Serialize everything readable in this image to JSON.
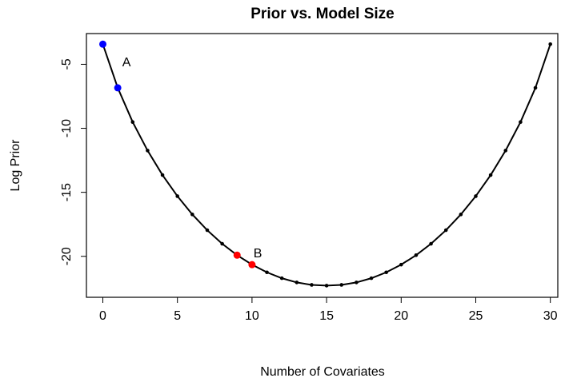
{
  "chart_data": {
    "type": "line",
    "title": "Prior vs. Model Size",
    "x_label": "Number of Covariates",
    "y_label": "Log Prior",
    "x": [
      0,
      1,
      2,
      3,
      4,
      5,
      6,
      7,
      8,
      9,
      10,
      11,
      12,
      13,
      14,
      15,
      16,
      17,
      18,
      19,
      20,
      21,
      22,
      23,
      24,
      25,
      26,
      27,
      28,
      29,
      30
    ],
    "values": [
      -3.43,
      -6.84,
      -9.51,
      -11.74,
      -13.65,
      -15.3,
      -16.73,
      -17.96,
      -19.02,
      -19.91,
      -20.65,
      -21.25,
      -21.71,
      -22.04,
      -22.23,
      -22.29,
      -22.23,
      -22.04,
      -21.71,
      -21.25,
      -20.65,
      -19.91,
      -19.02,
      -17.96,
      -16.73,
      -15.3,
      -13.65,
      -11.74,
      -9.51,
      -6.84,
      -3.43
    ],
    "color": "#000000",
    "point_colors": [
      "#0000ff",
      "#0000ff",
      "#000000",
      "#000000",
      "#000000",
      "#000000",
      "#000000",
      "#000000",
      "#000000",
      "#ff0000",
      "#ff0000",
      "#000000",
      "#000000",
      "#000000",
      "#000000",
      "#000000",
      "#000000",
      "#000000",
      "#000000",
      "#000000",
      "#000000",
      "#000000",
      "#000000",
      "#000000",
      "#000000",
      "#000000",
      "#000000",
      "#000000",
      "#000000",
      "#000000",
      "#000000"
    ],
    "annotations": [
      {
        "text": "A",
        "x": 1.3,
        "y": -4.9
      },
      {
        "text": "B",
        "x": 10.1,
        "y": -19.8
      }
    ],
    "xlim": [
      -1.1,
      30.5
    ],
    "xticks": [
      0,
      5,
      10,
      15,
      20,
      25,
      30
    ],
    "ylim": [
      -23.2,
      -2.6
    ],
    "yticks": [
      -5,
      -10,
      -15,
      -20
    ]
  }
}
